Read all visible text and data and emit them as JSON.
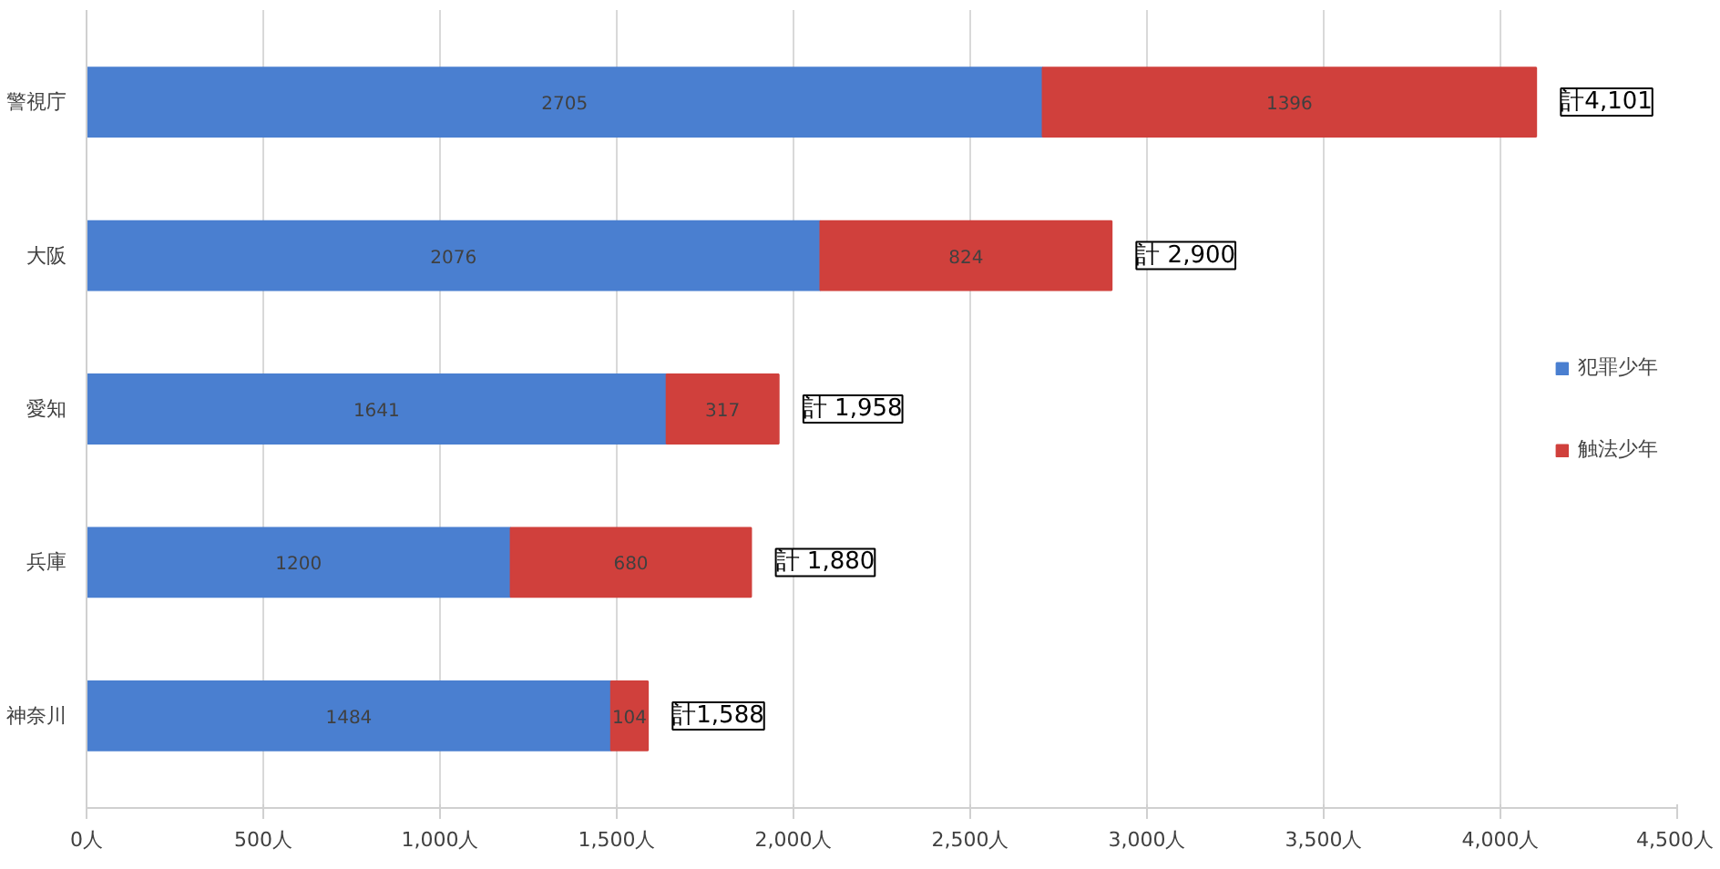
{
  "chart_data": {
    "type": "bar",
    "orientation": "horizontal",
    "stacked": true,
    "data_labels": true,
    "categories": [
      "警視庁",
      "大阪",
      "愛知",
      "兵庫",
      "神奈川"
    ],
    "series": [
      {
        "name": "犯罪少年",
        "color": "#4a7fd0",
        "values": [
          2705,
          2076,
          1641,
          1200,
          1484
        ]
      },
      {
        "name": "触法少年",
        "color": "#d0403c",
        "values": [
          1396,
          824,
          317,
          680,
          104
        ]
      }
    ],
    "totals": [
      "計4,101",
      "計 2,900",
      "計 1,958",
      "計 1,880",
      "計1,588"
    ],
    "xlim": [
      0,
      4500
    ],
    "xticks": [
      {
        "value": 0,
        "label": "0人"
      },
      {
        "value": 500,
        "label": "500人"
      },
      {
        "value": 1000,
        "label": "1,000人"
      },
      {
        "value": 1500,
        "label": "1,500人"
      },
      {
        "value": 2000,
        "label": "2,000人"
      },
      {
        "value": 2500,
        "label": "2,500人"
      },
      {
        "value": 3000,
        "label": "3,000人"
      },
      {
        "value": 3500,
        "label": "3,500人"
      },
      {
        "value": 4000,
        "label": "4,000人"
      },
      {
        "value": 4500,
        "label": "4,500人"
      }
    ],
    "grid": "x",
    "legend": "right"
  }
}
